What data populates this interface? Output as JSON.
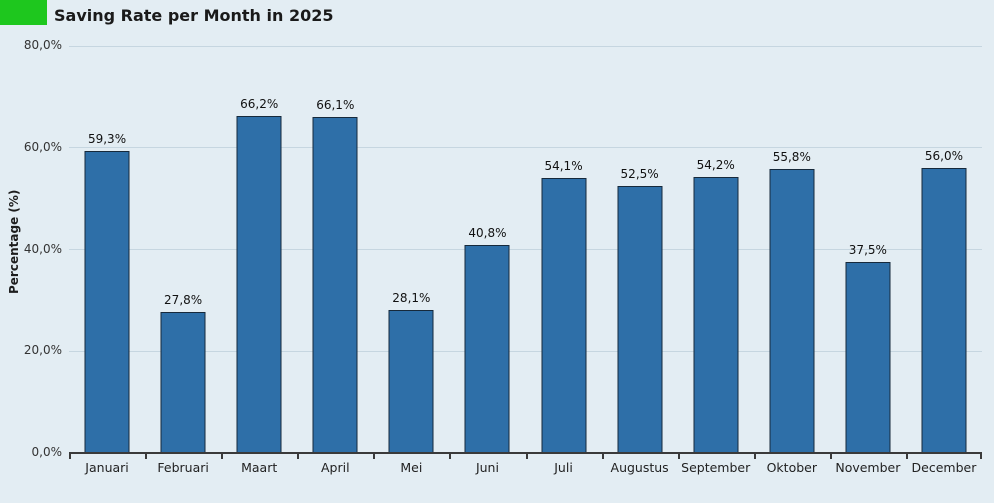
{
  "header": {
    "title": "Saving Rate per Month in 2025"
  },
  "chart_data": {
    "type": "bar",
    "title": "Saving Rate per Month in 2025",
    "xlabel": "",
    "ylabel": "Percentage (%)",
    "categories": [
      "Januari",
      "Februari",
      "Maart",
      "April",
      "Mei",
      "Juni",
      "Juli",
      "Augustus",
      "September",
      "Oktober",
      "November",
      "December"
    ],
    "values": [
      59.3,
      27.8,
      66.2,
      66.1,
      28.1,
      40.8,
      54.1,
      52.5,
      54.2,
      55.8,
      37.5,
      56.0
    ],
    "value_labels": [
      "59,3%",
      "27,8%",
      "66,2%",
      "66,1%",
      "28,1%",
      "40,8%",
      "54,1%",
      "52,5%",
      "54,2%",
      "55,8%",
      "37,5%",
      "56,0%"
    ],
    "ylim": [
      0,
      80
    ],
    "yticks": [
      {
        "value": 0,
        "label": "0,0%"
      },
      {
        "value": 20,
        "label": "20,0%"
      },
      {
        "value": 40,
        "label": "40,0%"
      },
      {
        "value": 60,
        "label": "60,0%"
      },
      {
        "value": 80,
        "label": "80,0%"
      }
    ],
    "grid": true,
    "legend": "none",
    "colors": {
      "background": "#e3edf3",
      "bar_fill": "#2e6fa8",
      "bar_border": "#16293b",
      "gridline": "#c6d6e0",
      "axis": "#3a3a3a",
      "accent_green": "#1ec71e"
    }
  }
}
